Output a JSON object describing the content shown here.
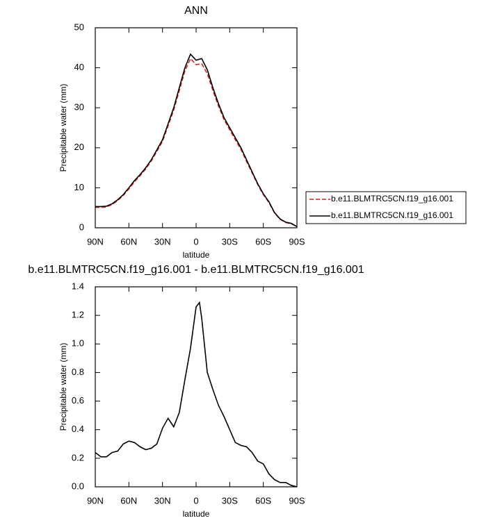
{
  "chart_data": [
    {
      "type": "line",
      "title": "ANN",
      "x_label": "latitude",
      "y_label": "Precipitable water (mm)",
      "x": [
        90,
        85,
        80,
        75,
        70,
        65,
        60,
        55,
        50,
        45,
        40,
        35,
        30,
        25,
        20,
        15,
        10,
        5,
        0,
        -5,
        -10,
        -15,
        -20,
        -25,
        -30,
        -35,
        -40,
        -45,
        -50,
        -55,
        -60,
        -65,
        -70,
        -75,
        -80,
        -85,
        -90
      ],
      "series": [
        {
          "name": "b.e11.BLMTRC5CN.f19_g16.001",
          "color": "#e31a1c",
          "linestyle": "dashed",
          "values": [
            5.1,
            5.1,
            5.2,
            5.8,
            6.8,
            8.1,
            9.7,
            11.5,
            13.0,
            14.7,
            16.7,
            19.1,
            21.6,
            25.5,
            29.4,
            34.3,
            39.2,
            42.3,
            40.8,
            41.0,
            38.5,
            34.3,
            30.4,
            27.0,
            24.5,
            22.0,
            19.6,
            16.6,
            13.7,
            10.8,
            8.3,
            6.3,
            3.7,
            2.1,
            1.3,
            1.0,
            0.3
          ]
        },
        {
          "name": "b.e11.BLMTRC5CN.f19_g16.001",
          "color": "#000000",
          "linestyle": "solid",
          "values": [
            5.3,
            5.3,
            5.4,
            6.0,
            7.0,
            8.3,
            10.0,
            11.8,
            13.3,
            15.0,
            17.0,
            19.5,
            22.0,
            26.0,
            30.0,
            35.0,
            40.0,
            43.4,
            41.9,
            42.3,
            39.5,
            35.0,
            31.0,
            27.5,
            25.0,
            22.5,
            20.0,
            17.0,
            14.0,
            11.0,
            8.5,
            6.5,
            3.8,
            2.2,
            1.4,
            1.1,
            0.3
          ]
        }
      ],
      "xlim": [
        90,
        -90
      ],
      "xticks": [
        {
          "value": 90,
          "label": "90N"
        },
        {
          "value": 60,
          "label": "60N"
        },
        {
          "value": 30,
          "label": "30N"
        },
        0,
        {
          "value": -30,
          "label": "30S"
        },
        {
          "value": -60,
          "label": "60S"
        },
        {
          "value": -90,
          "label": "90S"
        }
      ],
      "ylim": [
        0,
        50
      ],
      "yticks": [
        0,
        10,
        20,
        30,
        40,
        50
      ],
      "legend": "right"
    },
    {
      "type": "line",
      "title": "b.e11.BLMTRC5CN.f19_g16.001 - b.e11.BLMTRC5CN.f19_g16.001",
      "x_label": "latitude",
      "y_label": "Precipitable water (mm)",
      "x": [
        90,
        85,
        80,
        75,
        70,
        65,
        60,
        55,
        50,
        45,
        40,
        35,
        30,
        25,
        20,
        15,
        10,
        5,
        0,
        -3,
        -5,
        -10,
        -15,
        -20,
        -25,
        -30,
        -35,
        -40,
        -45,
        -50,
        -55,
        -60,
        -65,
        -70,
        -75,
        -80,
        -85,
        -90
      ],
      "values": [
        0.24,
        0.21,
        0.21,
        0.24,
        0.25,
        0.3,
        0.32,
        0.31,
        0.28,
        0.26,
        0.27,
        0.3,
        0.41,
        0.48,
        0.42,
        0.52,
        0.75,
        0.97,
        1.26,
        1.29,
        1.18,
        0.8,
        0.68,
        0.57,
        0.49,
        0.4,
        0.31,
        0.29,
        0.28,
        0.24,
        0.18,
        0.16,
        0.09,
        0.05,
        0.03,
        0.03,
        0.01,
        0.0
      ],
      "color": "#000000",
      "xlim": [
        90,
        -90
      ],
      "xticks": [
        {
          "value": 90,
          "label": "90N"
        },
        {
          "value": 60,
          "label": "60N"
        },
        {
          "value": 30,
          "label": "30N"
        },
        0,
        {
          "value": -30,
          "label": "30S"
        },
        {
          "value": -60,
          "label": "60S"
        },
        {
          "value": -90,
          "label": "90S"
        }
      ],
      "ylim": [
        0,
        1.4
      ],
      "yticks": [
        {
          "value": 0,
          "label": "0.0"
        },
        0.2,
        0.4,
        0.6,
        0.8,
        {
          "value": 1,
          "label": "1.0"
        },
        1.2,
        1.4
      ]
    }
  ]
}
